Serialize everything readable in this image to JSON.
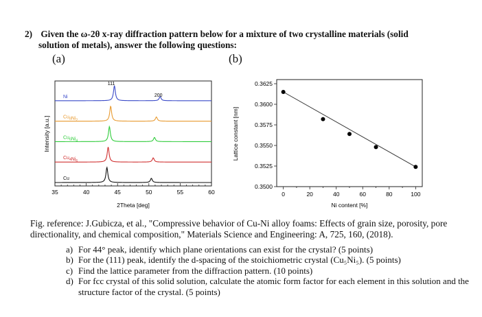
{
  "question": {
    "number": "2)",
    "line1": "Given the ω-2θ x-ray diffraction pattern below for a mixture of two crystalline materials (solid",
    "line2": "solution of metals), answer the following questions:"
  },
  "panels": {
    "a": "(a)",
    "b": "(b)"
  },
  "chart_data": [
    {
      "type": "line",
      "xlabel": "2Theta [deg]",
      "ylabel": "Intensity [a.u.]",
      "x_ticks": [
        "35",
        "40",
        "45",
        "50",
        "55",
        "60"
      ],
      "xlim": [
        35,
        60
      ],
      "peak_labels": [
        {
          "text": "111",
          "x": 44.0
        },
        {
          "text": "200",
          "x": 51.2
        }
      ],
      "series": [
        {
          "name": "Ni",
          "color": "#3848c8",
          "peaks": [
            44.5,
            51.8
          ],
          "heights": [
            1.0,
            0.28
          ]
        },
        {
          "name": "Cu_8Ni_2",
          "color": "#e89a30",
          "peaks": [
            43.9,
            51.2
          ],
          "heights": [
            1.0,
            0.28
          ]
        },
        {
          "name": "Cu_6Ni_4",
          "color": "#2ecc3a",
          "peaks": [
            43.7,
            50.9
          ],
          "heights": [
            1.0,
            0.28
          ]
        },
        {
          "name": "Cu_4Ni_6",
          "color": "#d03030",
          "peaks": [
            43.5,
            50.7
          ],
          "heights": [
            1.0,
            0.28
          ]
        },
        {
          "name": "Cu",
          "color": "#111111",
          "peaks": [
            43.3,
            50.4
          ],
          "heights": [
            1.0,
            0.28
          ]
        }
      ]
    },
    {
      "type": "scatter",
      "xlabel": "Ni content [%]",
      "ylabel": "Lattice constant [nm]",
      "x_ticks": [
        "0",
        "20",
        "40",
        "60",
        "80",
        "100"
      ],
      "y_ticks": [
        "0.3500",
        "0.3525",
        "0.3550",
        "0.3575",
        "0.3600",
        "0.3625"
      ],
      "xlim": [
        -5,
        105
      ],
      "ylim": [
        0.35,
        0.3625
      ],
      "x": [
        0,
        30,
        50,
        70,
        100
      ],
      "y": [
        0.3615,
        0.3582,
        0.3564,
        0.3548,
        0.3524
      ],
      "fit_line": {
        "x": [
          0,
          100
        ],
        "y": [
          0.3615,
          0.3524
        ]
      }
    }
  ],
  "figure_reference": "Fig. reference: J.Gubicza, et al., \"Compressive behavior of Cu-Ni alloy foams: Effects of grain size, porosity, pore directionality, and chemical composition,\" Materials Science and Engineering: A, 725, 160, (2018).",
  "sub_questions": [
    {
      "label": "a)",
      "text": "For 44° peak, identify which plane orientations can exist for the crystal? (5 points)"
    },
    {
      "label": "b)",
      "text": "For the (111) peak, identify the d-spacing of the stoichiometric crystal (Cu₅Ni₅). (5 points)"
    },
    {
      "label": "c)",
      "text": "Find the lattice parameter from the diffraction pattern. (10 points)"
    },
    {
      "label": "d)",
      "text": "For fcc crystal of this solid solution, calculate the atomic form factor for each element in this solution and the structure factor of the crystal. (5 points)"
    }
  ]
}
